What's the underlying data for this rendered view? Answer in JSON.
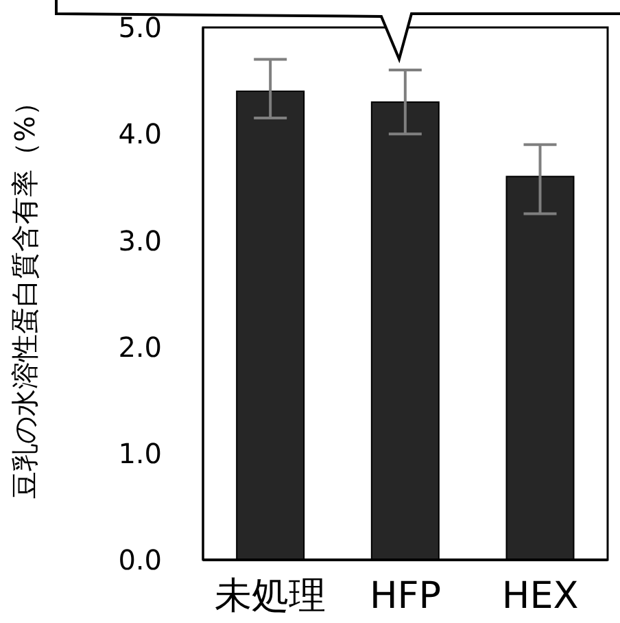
{
  "chart_data": {
    "type": "bar",
    "ylabel": "豆乳の水溶性蛋白質含有率（%）",
    "categories": [
      "未処理",
      "HFP",
      "HEX"
    ],
    "values": [
      4.4,
      4.3,
      3.6
    ],
    "errors": [
      [
        4.15,
        4.7
      ],
      [
        4.0,
        4.6
      ],
      [
        3.25,
        3.9
      ]
    ],
    "color": "#262626",
    "ylim": [
      0,
      5
    ],
    "yticks": [
      {
        "value": 0,
        "label": "0.0"
      },
      {
        "value": 1,
        "label": "1.0"
      },
      {
        "value": 2,
        "label": "2.0"
      },
      {
        "value": 3,
        "label": "3.0"
      },
      {
        "value": 4,
        "label": "4.0"
      },
      {
        "value": 5,
        "label": "5.0"
      }
    ],
    "grid": false,
    "legend": false
  }
}
